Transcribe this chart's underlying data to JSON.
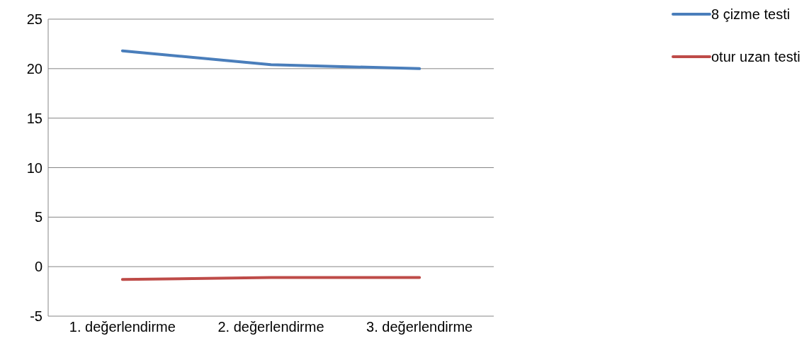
{
  "chart_data": {
    "type": "line",
    "categories": [
      "1. değerlendirme",
      "2. değerlendirme",
      "3. değerlendirme"
    ],
    "series": [
      {
        "name": "8 çizme testi",
        "color": "#4a7ebb",
        "values": [
          21.8,
          20.4,
          20.0
        ]
      },
      {
        "name": "otur uzan testi",
        "color": "#be4b48",
        "values": [
          -1.3,
          -1.1,
          -1.1
        ]
      }
    ],
    "ylim": [
      -5,
      25
    ],
    "yticks": [
      -5,
      0,
      5,
      10,
      15,
      20,
      25
    ],
    "grid": "y",
    "legend": "top right",
    "marker": "none",
    "line_style": "solid"
  }
}
